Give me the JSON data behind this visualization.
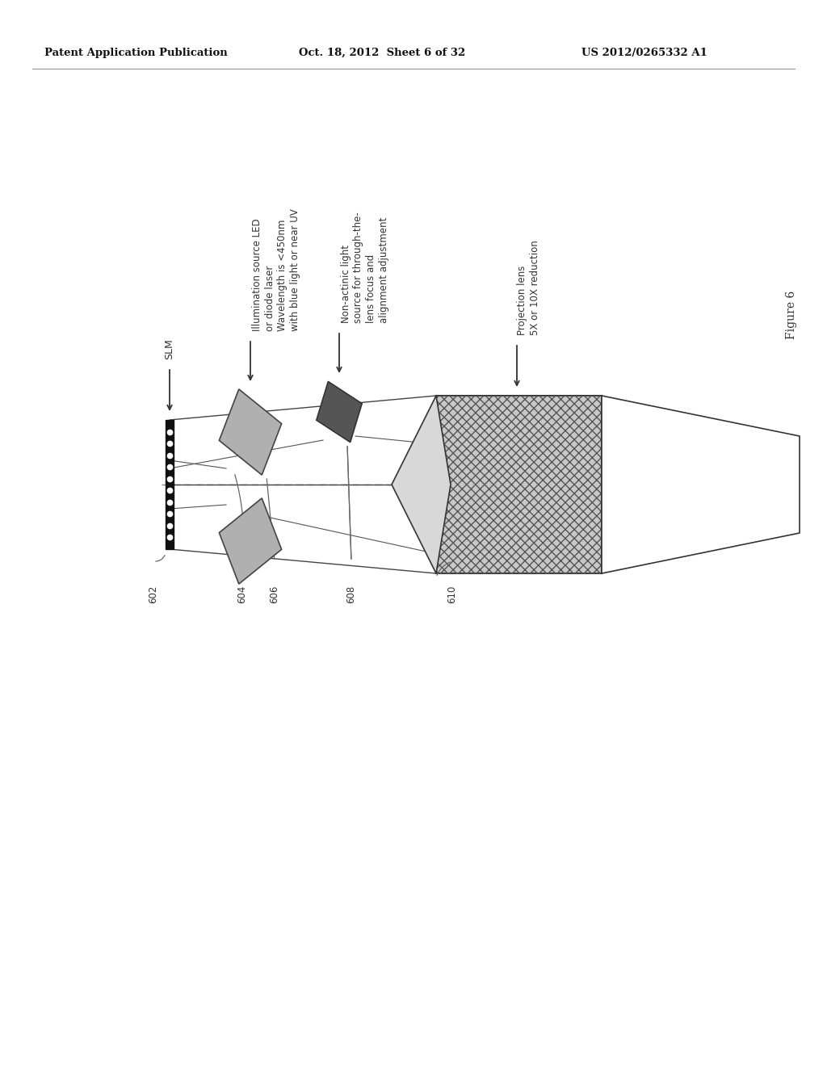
{
  "bg_color": "#ffffff",
  "header_left": "Patent Application Publication",
  "header_mid": "Oct. 18, 2012  Sheet 6 of 32",
  "header_right": "US 2012/0265332 A1",
  "figure_label": "Figure 6",
  "labels": {
    "slm": "SLM",
    "illumination": "Illumination source LED\nor diode laser\nWavelength is <450nm\nwith blue light or near UV",
    "non_actinic": "Non-actinic light\nsource for through-the-\nlens focus and\nalignment adjustment",
    "projection": "Projection lens\n5X or 10X reduction"
  },
  "ref_numbers": [
    "602",
    "604",
    "606",
    "608",
    "610"
  ],
  "line_color": "#555555",
  "lens_fill": "#c8c8c8",
  "mirror_fill_light": "#b0b0b0",
  "mirror_fill_dark": "#555555",
  "slm_color": "#111111",
  "text_color": "#333333"
}
